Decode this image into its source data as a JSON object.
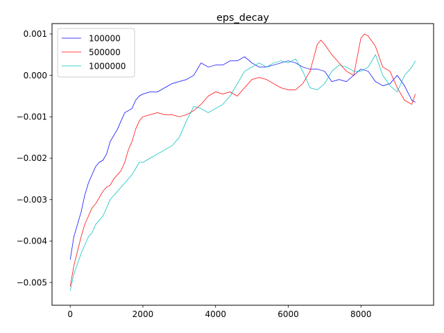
{
  "chart_data": {
    "type": "line",
    "title": "eps_decay",
    "xlabel": "",
    "ylabel": "",
    "xlim": [
      -500,
      10000
    ],
    "ylim": [
      -0.00555,
      0.00125
    ],
    "xticks": [
      0,
      2000,
      4000,
      6000,
      8000
    ],
    "xtick_labels": [
      "0",
      "2000",
      "4000",
      "6000",
      "8000"
    ],
    "yticks": [
      -0.005,
      -0.004,
      -0.003,
      -0.002,
      -0.001,
      0.0,
      0.001
    ],
    "ytick_labels": [
      "−0.005",
      "−0.004",
      "−0.003",
      "−0.002",
      "−0.001",
      "0.000",
      "0.001"
    ],
    "grid": false,
    "legend_position": "top-left",
    "series": [
      {
        "name": "100000",
        "color": "#0000ff",
        "points": [
          [
            0,
            -0.00445
          ],
          [
            100,
            -0.0039
          ],
          [
            300,
            -0.0033
          ],
          [
            400,
            -0.0029
          ],
          [
            500,
            -0.0026
          ],
          [
            600,
            -0.0024
          ],
          [
            700,
            -0.0022
          ],
          [
            800,
            -0.0021
          ],
          [
            900,
            -0.00205
          ],
          [
            1000,
            -0.0019
          ],
          [
            1100,
            -0.0016
          ],
          [
            1200,
            -0.00145
          ],
          [
            1300,
            -0.0013
          ],
          [
            1400,
            -0.0011
          ],
          [
            1500,
            -0.0009
          ],
          [
            1600,
            -0.00085
          ],
          [
            1700,
            -0.0008
          ],
          [
            1800,
            -0.0006
          ],
          [
            1900,
            -0.0005
          ],
          [
            2000,
            -0.00045
          ],
          [
            2200,
            -0.0004
          ],
          [
            2400,
            -0.0004
          ],
          [
            2600,
            -0.0003
          ],
          [
            2800,
            -0.0002
          ],
          [
            3000,
            -0.00015
          ],
          [
            3200,
            -0.0001
          ],
          [
            3400,
            0.0
          ],
          [
            3600,
            0.0003
          ],
          [
            3800,
            0.0002
          ],
          [
            4000,
            0.00025
          ],
          [
            4200,
            0.00025
          ],
          [
            4400,
            0.00035
          ],
          [
            4600,
            0.00035
          ],
          [
            4800,
            0.00045
          ],
          [
            5000,
            0.0003
          ],
          [
            5200,
            0.0002
          ],
          [
            5400,
            0.0002
          ],
          [
            5600,
            0.00025
          ],
          [
            5800,
            0.0003
          ],
          [
            6000,
            0.00035
          ],
          [
            6200,
            0.0003
          ],
          [
            6400,
            0.0002
          ],
          [
            6600,
            0.00015
          ],
          [
            6800,
            0.00015
          ],
          [
            7000,
            0.0001
          ],
          [
            7200,
            -0.00015
          ],
          [
            7400,
            -0.0001
          ],
          [
            7600,
            -0.00015
          ],
          [
            7800,
            0.0
          ],
          [
            8000,
            0.00015
          ],
          [
            8200,
            0.0001
          ],
          [
            8400,
            -0.00015
          ],
          [
            8600,
            -0.00025
          ],
          [
            8800,
            -0.0002
          ],
          [
            9000,
            0.0
          ],
          [
            9200,
            -0.00025
          ],
          [
            9400,
            -0.0006
          ],
          [
            9500,
            -0.00065
          ]
        ]
      },
      {
        "name": "500000",
        "color": "#ff0000",
        "points": [
          [
            0,
            -0.0051
          ],
          [
            100,
            -0.0046
          ],
          [
            300,
            -0.0039
          ],
          [
            400,
            -0.0036
          ],
          [
            500,
            -0.0034
          ],
          [
            600,
            -0.0032
          ],
          [
            700,
            -0.0031
          ],
          [
            800,
            -0.00295
          ],
          [
            900,
            -0.0028
          ],
          [
            1000,
            -0.0027
          ],
          [
            1100,
            -0.00265
          ],
          [
            1200,
            -0.0025
          ],
          [
            1300,
            -0.0024
          ],
          [
            1400,
            -0.0023
          ],
          [
            1500,
            -0.0021
          ],
          [
            1600,
            -0.0018
          ],
          [
            1700,
            -0.0016
          ],
          [
            1800,
            -0.0013
          ],
          [
            1900,
            -0.0011
          ],
          [
            2000,
            -0.001
          ],
          [
            2200,
            -0.00095
          ],
          [
            2400,
            -0.0009
          ],
          [
            2600,
            -0.00095
          ],
          [
            2800,
            -0.00095
          ],
          [
            3000,
            -0.001
          ],
          [
            3200,
            -0.00095
          ],
          [
            3400,
            -0.00085
          ],
          [
            3600,
            -0.0007
          ],
          [
            3800,
            -0.0005
          ],
          [
            4000,
            -0.0004
          ],
          [
            4200,
            -0.00045
          ],
          [
            4400,
            -0.0004
          ],
          [
            4600,
            -0.0005
          ],
          [
            4800,
            -0.0003
          ],
          [
            5000,
            -0.0001
          ],
          [
            5200,
            -5e-05
          ],
          [
            5400,
            -0.0001
          ],
          [
            5600,
            -0.0002
          ],
          [
            5800,
            -0.0003
          ],
          [
            6000,
            -0.00035
          ],
          [
            6200,
            -0.00035
          ],
          [
            6400,
            -0.0002
          ],
          [
            6600,
            0.0001
          ],
          [
            6800,
            0.00075
          ],
          [
            6900,
            0.00085
          ],
          [
            7000,
            0.00075
          ],
          [
            7200,
            0.0005
          ],
          [
            7400,
            0.0003
          ],
          [
            7600,
            0.0001
          ],
          [
            7800,
            0.0
          ],
          [
            8000,
            0.0009
          ],
          [
            8100,
            0.001
          ],
          [
            8200,
            0.00095
          ],
          [
            8400,
            0.0007
          ],
          [
            8600,
            0.0002
          ],
          [
            8800,
            0.0001
          ],
          [
            9000,
            -0.0003
          ],
          [
            9200,
            -0.0006
          ],
          [
            9400,
            -0.0007
          ],
          [
            9500,
            -0.00045
          ]
        ]
      },
      {
        "name": "1000000",
        "color": "#00bfbf",
        "points": [
          [
            0,
            -0.0052
          ],
          [
            100,
            -0.0048
          ],
          [
            300,
            -0.0043
          ],
          [
            400,
            -0.0041
          ],
          [
            500,
            -0.0039
          ],
          [
            600,
            -0.0038
          ],
          [
            700,
            -0.0036
          ],
          [
            800,
            -0.0035
          ],
          [
            900,
            -0.0034
          ],
          [
            1000,
            -0.0032
          ],
          [
            1100,
            -0.003
          ],
          [
            1200,
            -0.0029
          ],
          [
            1300,
            -0.0028
          ],
          [
            1400,
            -0.0027
          ],
          [
            1500,
            -0.0026
          ],
          [
            1600,
            -0.0025
          ],
          [
            1700,
            -0.0024
          ],
          [
            1800,
            -0.00225
          ],
          [
            1900,
            -0.0021
          ],
          [
            2000,
            -0.0021
          ],
          [
            2200,
            -0.002
          ],
          [
            2400,
            -0.0019
          ],
          [
            2600,
            -0.0018
          ],
          [
            2800,
            -0.0017
          ],
          [
            3000,
            -0.0015
          ],
          [
            3200,
            -0.0011
          ],
          [
            3400,
            -0.00075
          ],
          [
            3600,
            -0.0008
          ],
          [
            3800,
            -0.0009
          ],
          [
            4000,
            -0.0008
          ],
          [
            4200,
            -0.0007
          ],
          [
            4400,
            -0.0005
          ],
          [
            4600,
            -0.0002
          ],
          [
            4800,
            0.0001
          ],
          [
            5000,
            0.0002
          ],
          [
            5200,
            0.0003
          ],
          [
            5400,
            0.0002
          ],
          [
            5600,
            0.0003
          ],
          [
            5800,
            0.00035
          ],
          [
            6000,
            0.0003
          ],
          [
            6200,
            0.0004
          ],
          [
            6400,
            0.0001
          ],
          [
            6600,
            -0.0003
          ],
          [
            6800,
            -0.00035
          ],
          [
            7000,
            -0.0002
          ],
          [
            7200,
            0.0001
          ],
          [
            7400,
            0.00025
          ],
          [
            7600,
            0.0002
          ],
          [
            7800,
            0.0001
          ],
          [
            8000,
            0.0001
          ],
          [
            8200,
            0.0002
          ],
          [
            8400,
            0.0005
          ],
          [
            8600,
            0.0
          ],
          [
            8800,
            -0.00025
          ],
          [
            9000,
            -0.0004
          ],
          [
            9200,
            0.0
          ],
          [
            9400,
            0.0002
          ],
          [
            9500,
            0.00035
          ]
        ]
      }
    ]
  }
}
